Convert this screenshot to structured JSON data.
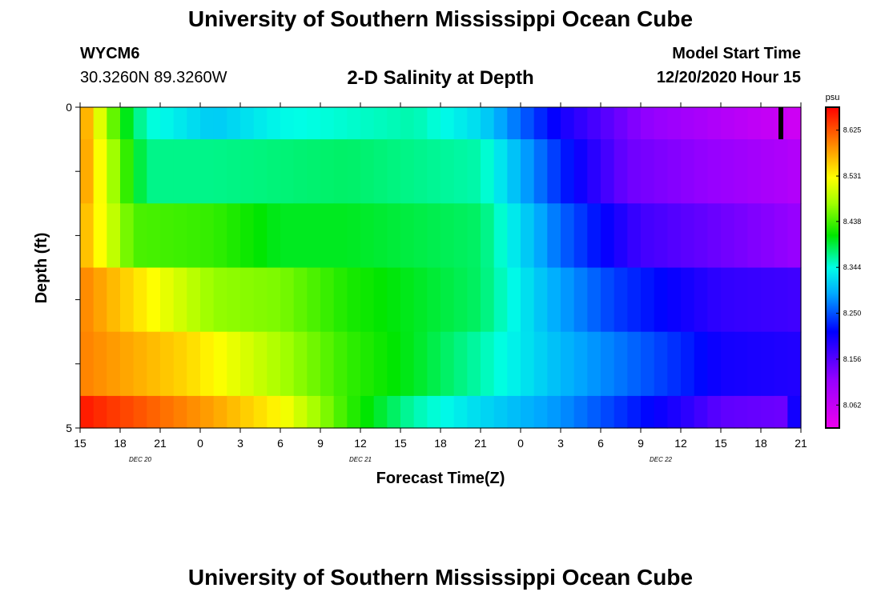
{
  "header": {
    "title": "University of Southern Mississippi Ocean Cube",
    "station": "WYCM6",
    "coords": "30.3260N 89.3260W",
    "model_start_label": "Model Start Time",
    "model_start_value": "12/20/2020 Hour 15"
  },
  "footer": {
    "title": "University of Southern Mississippi Ocean Cube"
  },
  "chart_data": {
    "type": "heatmap",
    "title": "2-D Salinity at Depth",
    "xlabel": "Forecast Time(Z)",
    "ylabel": "Depth (ft)",
    "x_ticks": [
      "15",
      "18",
      "21",
      "0",
      "3",
      "6",
      "9",
      "12",
      "15",
      "18",
      "21",
      "0",
      "3",
      "6",
      "9",
      "12",
      "15",
      "18",
      "21"
    ],
    "x_day_labels": [
      {
        "label": "DEC 20",
        "tick_index": 1.5
      },
      {
        "label": "DEC 21",
        "tick_index": 7
      },
      {
        "label": "DEC 22",
        "tick_index": 14.5
      }
    ],
    "y_ticks": [
      {
        "value": 0,
        "label": "0"
      },
      {
        "value": 1,
        "label": ""
      },
      {
        "value": 2,
        "label": ""
      },
      {
        "value": 3,
        "label": ""
      },
      {
        "value": 4,
        "label": ""
      },
      {
        "value": 5,
        "label": "5"
      }
    ],
    "ylim": [
      0,
      5
    ],
    "y_inverted": true,
    "colorbar": {
      "unit": "psu",
      "min": 8.015,
      "max": 8.672,
      "tick_values": [
        8.625,
        8.531,
        8.438,
        8.344,
        8.25,
        8.156,
        8.062
      ],
      "tick_labels": [
        "8.625",
        "8.531",
        "8.438",
        "8.344",
        "8.250",
        "8.156",
        "8.062"
      ]
    },
    "forecast_hours": 54,
    "depth_layers": [
      {
        "depth_range": [
          0.0,
          0.5
        ],
        "keyframes": [
          [
            0,
            8.6
          ],
          [
            3,
            8.42
          ],
          [
            5,
            8.35
          ],
          [
            10,
            8.31
          ],
          [
            15,
            8.34
          ],
          [
            25,
            8.36
          ],
          [
            30,
            8.32
          ],
          [
            36,
            8.2
          ],
          [
            42,
            8.12
          ],
          [
            50,
            8.07
          ],
          [
            54,
            8.05
          ]
        ]
      },
      {
        "depth_range": [
          0.5,
          1.5
        ],
        "keyframes": [
          [
            0,
            8.6
          ],
          [
            3,
            8.45
          ],
          [
            5,
            8.37
          ],
          [
            10,
            8.37
          ],
          [
            20,
            8.38
          ],
          [
            30,
            8.36
          ],
          [
            36,
            8.23
          ],
          [
            41,
            8.14
          ],
          [
            50,
            8.1
          ],
          [
            54,
            8.08
          ]
        ]
      },
      {
        "depth_range": [
          1.5,
          2.5
        ],
        "keyframes": [
          [
            0,
            8.58
          ],
          [
            4,
            8.44
          ],
          [
            10,
            8.43
          ],
          [
            15,
            8.4
          ],
          [
            20,
            8.4
          ],
          [
            30,
            8.38
          ],
          [
            36,
            8.26
          ],
          [
            42,
            8.17
          ],
          [
            50,
            8.13
          ],
          [
            54,
            8.11
          ]
        ]
      },
      {
        "depth_range": [
          2.5,
          3.5
        ],
        "keyframes": [
          [
            0,
            8.6
          ],
          [
            6,
            8.52
          ],
          [
            10,
            8.47
          ],
          [
            15,
            8.46
          ],
          [
            20,
            8.42
          ],
          [
            30,
            8.38
          ],
          [
            35,
            8.3
          ],
          [
            40,
            8.24
          ],
          [
            48,
            8.18
          ],
          [
            54,
            8.17
          ]
        ]
      },
      {
        "depth_range": [
          3.5,
          4.5
        ],
        "keyframes": [
          [
            0,
            8.6
          ],
          [
            8,
            8.55
          ],
          [
            12,
            8.51
          ],
          [
            16,
            8.47
          ],
          [
            20,
            8.43
          ],
          [
            25,
            8.4
          ],
          [
            30,
            8.36
          ],
          [
            36,
            8.3
          ],
          [
            40,
            8.27
          ],
          [
            45,
            8.23
          ],
          [
            48,
            8.2
          ],
          [
            54,
            8.19
          ]
        ]
      },
      {
        "depth_range": [
          4.5,
          5.0
        ],
        "keyframes": [
          [
            0,
            8.66
          ],
          [
            10,
            8.58
          ],
          [
            15,
            8.53
          ],
          [
            18,
            8.47
          ],
          [
            20,
            8.43
          ],
          [
            25,
            8.36
          ],
          [
            30,
            8.32
          ],
          [
            36,
            8.28
          ],
          [
            40,
            8.24
          ],
          [
            45,
            8.19
          ],
          [
            48,
            8.15
          ],
          [
            53,
            8.14
          ],
          [
            54,
            8.26
          ]
        ]
      }
    ],
    "current_time_marker_hour": 52.5,
    "grid": false
  }
}
